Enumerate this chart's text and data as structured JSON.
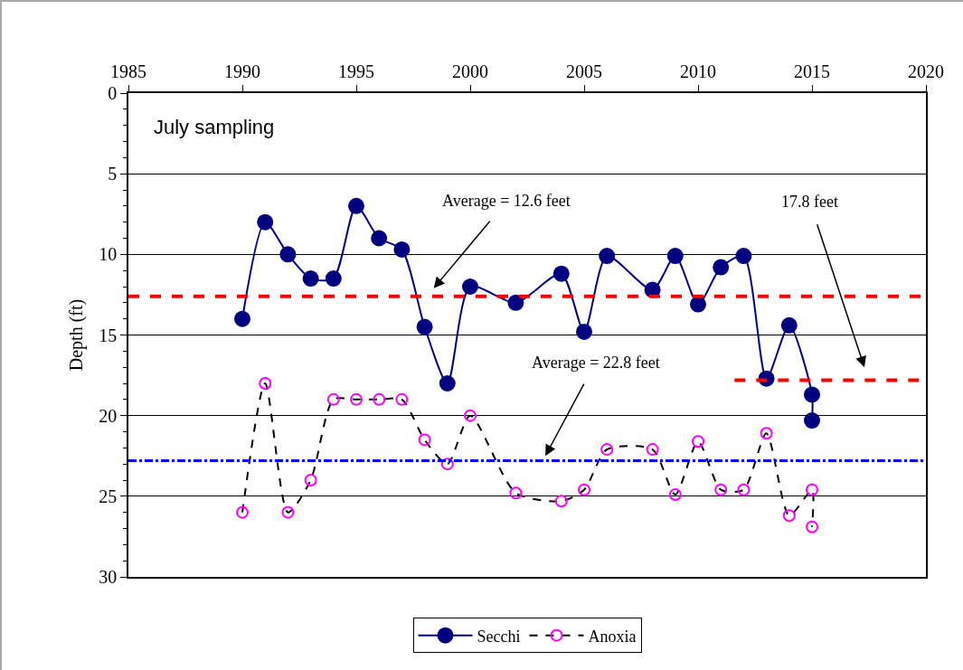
{
  "chart_data": {
    "type": "line",
    "ylabel": "Depth (ft)",
    "xlim": [
      1985,
      2020
    ],
    "xticks": [
      1985,
      1990,
      1995,
      2000,
      2005,
      2010,
      2015,
      2020
    ],
    "ylim": [
      30,
      0
    ],
    "yticks": [
      0,
      5,
      10,
      15,
      20,
      25,
      30
    ],
    "grid": "y",
    "legend": "bottom",
    "series": [
      {
        "name": "Secchi",
        "color": "#000080",
        "marker": "circle",
        "line_style": "solid",
        "x": [
          1990,
          1991,
          1992,
          1993,
          1994,
          1995,
          1996,
          1997,
          1998,
          1999,
          2000,
          2002,
          2004,
          2005,
          2006,
          2008,
          2009,
          2010,
          2011,
          2012,
          2013,
          2014,
          2015,
          2015
        ],
        "values": [
          14.0,
          8.0,
          10.0,
          11.5,
          11.5,
          7.0,
          9.0,
          9.7,
          14.5,
          18.0,
          12.0,
          13.0,
          11.2,
          14.8,
          10.1,
          12.2,
          10.1,
          13.1,
          10.8,
          10.1,
          17.7,
          14.4,
          18.7,
          20.3
        ]
      },
      {
        "name": "Anoxia",
        "color": "#ff00ff",
        "marker": "circle",
        "line_style": "dashed",
        "x": [
          1990,
          1991,
          1992,
          1993,
          1994,
          1995,
          1996,
          1997,
          1998,
          1999,
          2000,
          2002,
          2004,
          2005,
          2006,
          2008,
          2009,
          2010,
          2011,
          2012,
          2013,
          2014,
          2015,
          2015
        ],
        "values": [
          26.0,
          18.0,
          26.0,
          24.0,
          19.0,
          19.0,
          19.0,
          19.0,
          21.5,
          23.0,
          20.0,
          24.8,
          25.3,
          24.6,
          22.1,
          22.1,
          24.9,
          21.6,
          24.6,
          24.6,
          21.1,
          26.2,
          24.6,
          26.9
        ]
      },
      {
        "color": "#ff0000",
        "marker": "none",
        "line_style": "dashed",
        "x": [
          2011.6,
          2020
        ],
        "values": [
          17.8,
          17.8
        ]
      }
    ],
    "ref_lines": [
      {
        "axis": "y",
        "value": 12.6,
        "label": "Average = 12.6 feet",
        "color": "#ff0000",
        "line_style": "dashed"
      },
      {
        "axis": "y",
        "value": 22.8,
        "label": "Average = 22.8 feet",
        "color": "#0000ff",
        "line_style": "dashdot"
      }
    ],
    "annotations": [
      "July sampling",
      "17.8 feet"
    ]
  }
}
